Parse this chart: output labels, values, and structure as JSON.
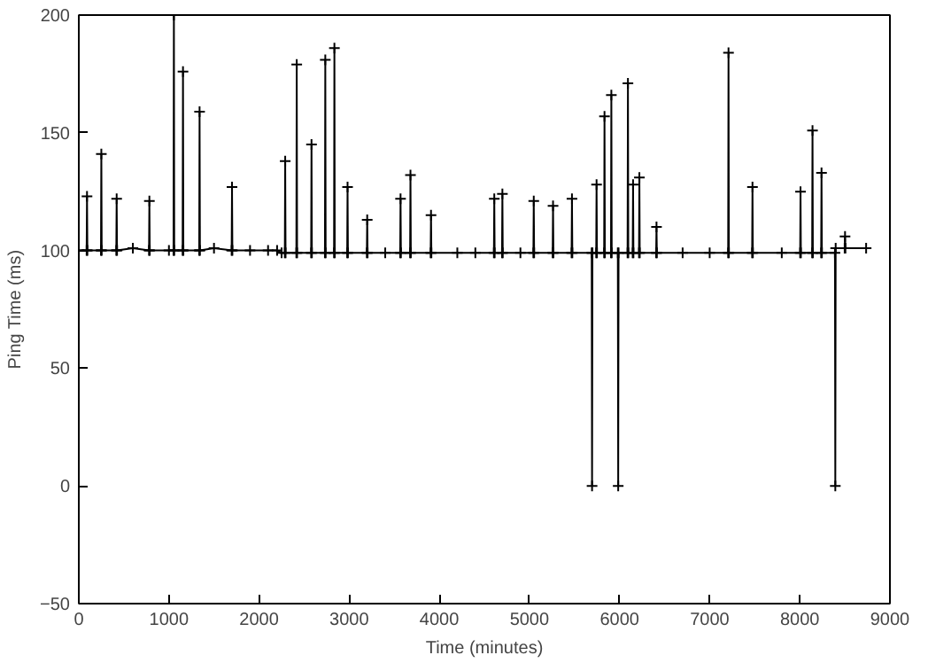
{
  "chart_data": {
    "type": "line",
    "xlabel": "Time (minutes)",
    "ylabel": "Ping Time (ms)",
    "x": [
      0,
      87,
      91,
      95,
      246,
      250,
      254,
      416,
      420,
      424,
      600,
      779,
      783,
      787,
      1000,
      1051,
      1055,
      1059,
      1152,
      1156,
      1160,
      1336,
      1340,
      1344,
      1500,
      1696,
      1700,
      1704,
      1900,
      2100,
      2200,
      2250,
      2286,
      2290,
      2294,
      2414,
      2418,
      2422,
      2578,
      2582,
      2586,
      2731,
      2735,
      2739,
      2832,
      2836,
      2840,
      2978,
      2982,
      2986,
      3196,
      3200,
      3204,
      3400,
      3566,
      3570,
      3574,
      3676,
      3680,
      3684,
      3904,
      3908,
      3912,
      4200,
      4400,
      4606,
      4610,
      4614,
      4696,
      4700,
      4704,
      4900,
      5044,
      5048,
      5052,
      5258,
      5262,
      5266,
      5468,
      5472,
      5476,
      5691,
      5695,
      5699,
      5741,
      5745,
      5749,
      5829,
      5833,
      5837,
      5905,
      5909,
      5913,
      5981,
      5985,
      5989,
      6089,
      6093,
      6097,
      6146,
      6150,
      6154,
      6216,
      6220,
      6224,
      6406,
      6410,
      6414,
      6700,
      7000,
      7205,
      7209,
      7213,
      7471,
      7475,
      7479,
      7800,
      8004,
      8008,
      8012,
      8137,
      8141,
      8145,
      8237,
      8241,
      8245,
      8390,
      8394,
      8398,
      8498,
      8502,
      8506,
      8736
    ],
    "series": [
      {
        "color": "#000000",
        "values": [
          100,
          100,
          123,
          100,
          100,
          141,
          100,
          100,
          122,
          100,
          101,
          100,
          121,
          100,
          100,
          100,
          200,
          100,
          100,
          176,
          100,
          100,
          159,
          100,
          101,
          100,
          127,
          100,
          100,
          100,
          100,
          99,
          99,
          138,
          99,
          99,
          179,
          99,
          99,
          145,
          99,
          99,
          181,
          99,
          99,
          186,
          99,
          99,
          127,
          99,
          99,
          113,
          99,
          99,
          99,
          122,
          99,
          99,
          132,
          99,
          99,
          115,
          99,
          99,
          99,
          99,
          122,
          99,
          99,
          124,
          99,
          99,
          99,
          121,
          99,
          99,
          119,
          99,
          99,
          122,
          99,
          99,
          0,
          99,
          99,
          128,
          99,
          99,
          157,
          99,
          99,
          166,
          99,
          99,
          0,
          99,
          99,
          171,
          99,
          99,
          128,
          99,
          99,
          131,
          99,
          99,
          110,
          99,
          99,
          99,
          99,
          184,
          99,
          99,
          127,
          99,
          99,
          99,
          125,
          99,
          99,
          151,
          99,
          99,
          133,
          99,
          99,
          0,
          101,
          101,
          106,
          101,
          101
        ]
      }
    ],
    "xlim": [
      0,
      9000
    ],
    "ylim": [
      -50,
      200
    ],
    "xticks": [
      0,
      1000,
      2000,
      3000,
      4000,
      5000,
      6000,
      7000,
      8000,
      9000
    ],
    "yticks": [
      -50,
      0,
      50,
      100,
      150,
      200
    ],
    "marker": "cross",
    "line_style": "solid",
    "grid": false
  }
}
